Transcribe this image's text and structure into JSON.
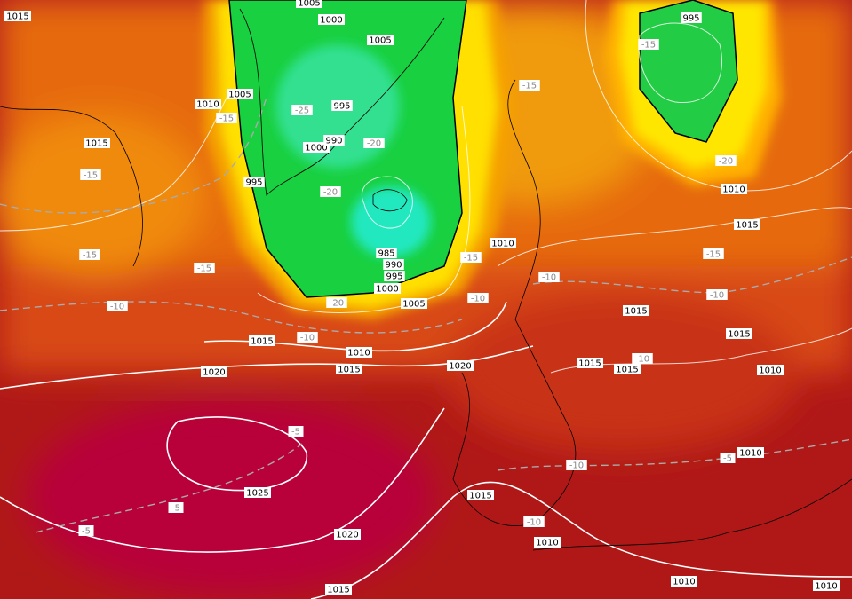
{
  "labels": [
    "1015",
    "1005",
    "1000",
    "1005",
    "995",
    "-15",
    "1005",
    "1010",
    "-15",
    "-25",
    "995",
    "1015",
    "1000",
    "990",
    "-20",
    "-15",
    "-20",
    "1010",
    "-15",
    "995",
    "-20",
    "1015",
    "1010",
    "-15",
    "-15",
    "985",
    "-15",
    "990",
    "995",
    "-15",
    "-10",
    "1000",
    "-10",
    "-20",
    "1005",
    "-10",
    "1015",
    "-10",
    "1015",
    "-10",
    "1015",
    "1010",
    "1015",
    "1015",
    "-10",
    "1010",
    "1020",
    "1015",
    "1020",
    "-5",
    "-10",
    "-5",
    "1010",
    "1025",
    "1015",
    "-5",
    "-10",
    "-5",
    "1020",
    "1010",
    "1015",
    "1010",
    "1010"
  ]
}
